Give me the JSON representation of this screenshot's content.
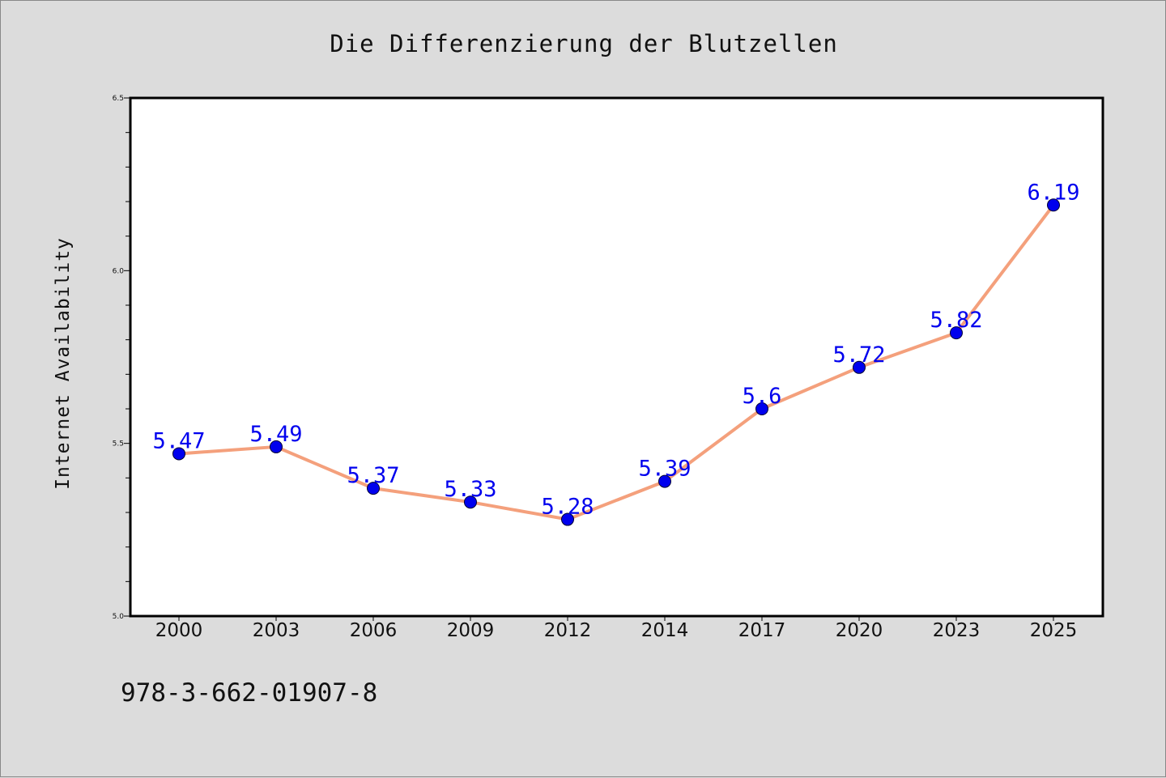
{
  "footer_code": "978-3-662-01907-8",
  "chart_data": {
    "type": "line",
    "title": "Die Differenzierung der Blutzellen",
    "xlabel": "",
    "ylabel": "Internet Availability",
    "categories": [
      "2000",
      "2003",
      "2006",
      "2009",
      "2012",
      "2014",
      "2017",
      "2020",
      "2023",
      "2025"
    ],
    "values": [
      5.47,
      5.49,
      5.37,
      5.33,
      5.28,
      5.39,
      5.6,
      5.72,
      5.82,
      6.19
    ],
    "data_labels": [
      "5.47",
      "5.49",
      "5.37",
      "5.33",
      "5.28",
      "5.39",
      "5.6",
      "5.72",
      "5.82",
      "6.19"
    ],
    "ylim": [
      5.0,
      6.5
    ],
    "yticks": [
      "5.0",
      "5.5",
      "6.0",
      "6.5"
    ],
    "grid": false,
    "colors": {
      "line": "#f4a07c",
      "marker": "#0000ee",
      "label": "#0000ee",
      "background": "#dcdcdc",
      "plot_bg": "#ffffff"
    }
  }
}
